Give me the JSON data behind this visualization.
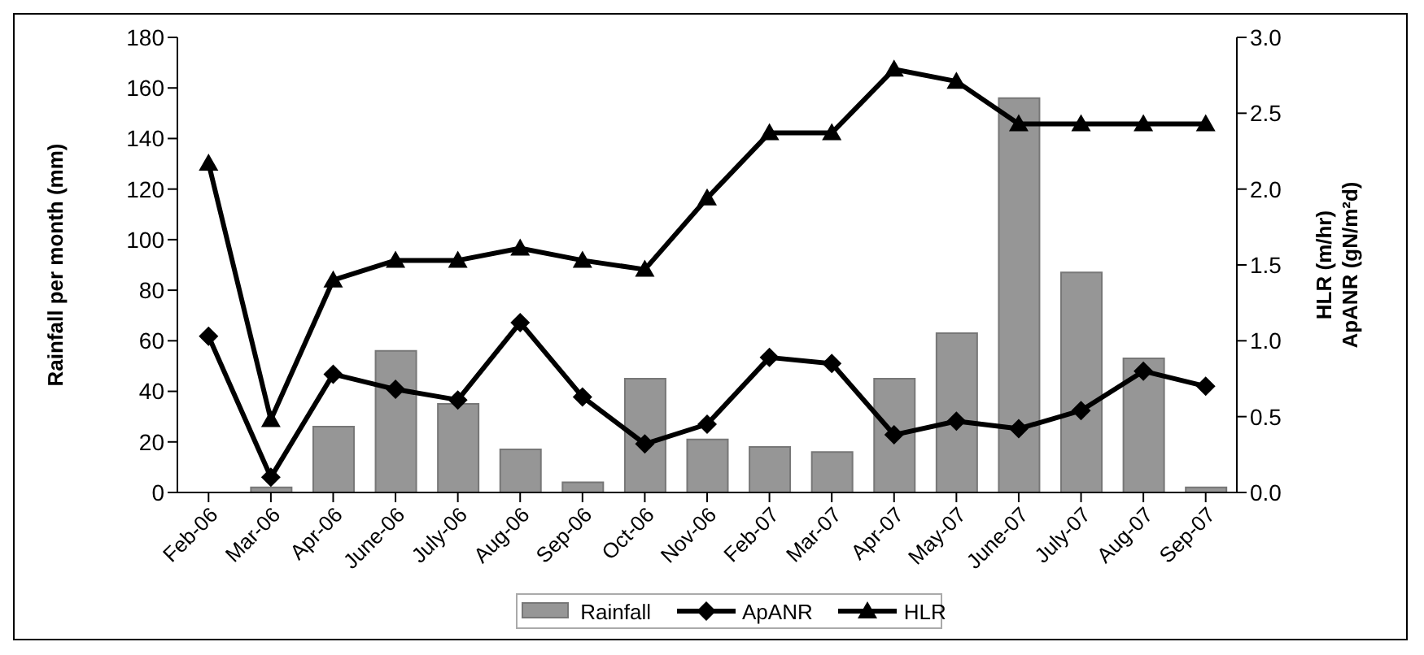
{
  "chart_data": {
    "type": "bar",
    "ylabel": "Rainfall per month (mm)",
    "y2label": "HLR (m/hr)\nApANR (gN/m²d)",
    "categories": [
      "Feb-06",
      "Mar-06",
      "Apr-06",
      "June-06",
      "July-06",
      "Aug-06",
      "Sep-06",
      "Oct-06",
      "Nov-06",
      "Feb-07",
      "Mar-07",
      "Apr-07",
      "May-07",
      "June-07",
      "July-07",
      "Aug-07",
      "Sep-07"
    ],
    "series": [
      {
        "name": "Rainfall",
        "color": "#969696",
        "values": [
          null,
          2,
          26,
          56,
          35,
          17,
          4,
          45,
          21,
          18,
          16,
          45,
          63,
          156,
          87,
          53,
          2
        ]
      },
      {
        "name": "ApANR",
        "type": "line",
        "axis": "y2",
        "color": "#000000",
        "marker": "diamond",
        "values": [
          1.03,
          0.1,
          0.78,
          0.68,
          0.61,
          1.12,
          0.63,
          0.32,
          0.45,
          0.89,
          0.85,
          0.38,
          0.47,
          0.42,
          0.54,
          0.8,
          0.7
        ]
      },
      {
        "name": "HLR",
        "type": "line",
        "axis": "y2",
        "color": "#000000",
        "marker": "triangle",
        "values": [
          2.17,
          0.48,
          1.4,
          1.53,
          1.53,
          1.61,
          1.53,
          1.47,
          1.94,
          2.37,
          2.37,
          2.79,
          2.71,
          2.43,
          2.43,
          2.43,
          2.43
        ]
      }
    ],
    "ylim": [
      0,
      180
    ],
    "yticks": [
      0,
      20,
      40,
      60,
      80,
      100,
      120,
      140,
      160,
      180
    ],
    "y2lim": [
      0,
      3
    ],
    "y2ticks": [
      {
        "value": 0,
        "label": "0.0"
      },
      {
        "value": 0.5,
        "label": "0.5"
      },
      {
        "value": 1,
        "label": "1.0"
      },
      {
        "value": 1.5,
        "label": "1.5"
      },
      {
        "value": 2,
        "label": "2.0"
      },
      {
        "value": 2.5,
        "label": "2.5"
      },
      {
        "value": 3,
        "label": "3.0"
      }
    ],
    "grid": false,
    "legend": "bottom"
  }
}
